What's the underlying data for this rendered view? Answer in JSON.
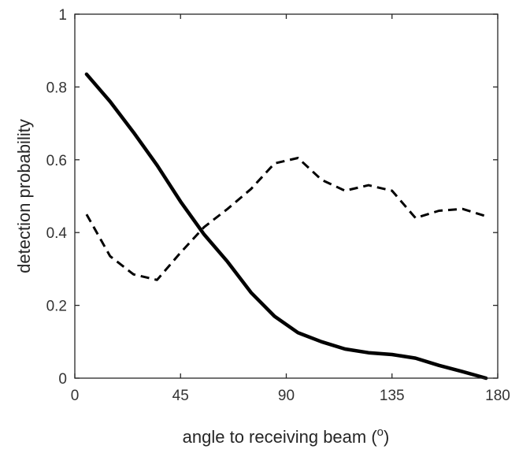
{
  "chart_data": {
    "type": "line",
    "xlabel": "angle to receiving beam (",
    "xlabel_superscript": "o",
    "xlabel_suffix": ")",
    "ylabel": "detection probability",
    "xlim": [
      0,
      180
    ],
    "ylim": [
      0,
      1
    ],
    "x_ticks": [
      "0",
      "45",
      "90",
      "135",
      "180"
    ],
    "y_ticks": [
      "0",
      "0.2",
      "0.4",
      "0.6",
      "0.8",
      "1"
    ],
    "grid": false,
    "series": [
      {
        "style": "solid",
        "color": "#000000",
        "x": [
          5,
          15,
          25,
          35,
          45,
          55,
          65,
          75,
          85,
          95,
          105,
          115,
          125,
          135,
          145,
          155,
          165,
          175
        ],
        "y": [
          0.835,
          0.76,
          0.675,
          0.585,
          0.485,
          0.395,
          0.32,
          0.235,
          0.17,
          0.125,
          0.1,
          0.08,
          0.07,
          0.065,
          0.055,
          0.035,
          0.018,
          0.0
        ]
      },
      {
        "style": "dashed",
        "color": "#000000",
        "x": [
          5,
          15,
          25,
          35,
          45,
          55,
          65,
          75,
          85,
          95,
          105,
          115,
          125,
          135,
          145,
          155,
          165,
          175
        ],
        "y": [
          0.45,
          0.335,
          0.285,
          0.27,
          0.345,
          0.415,
          0.465,
          0.52,
          0.59,
          0.605,
          0.545,
          0.515,
          0.53,
          0.515,
          0.44,
          0.46,
          0.465,
          0.445
        ]
      }
    ]
  }
}
